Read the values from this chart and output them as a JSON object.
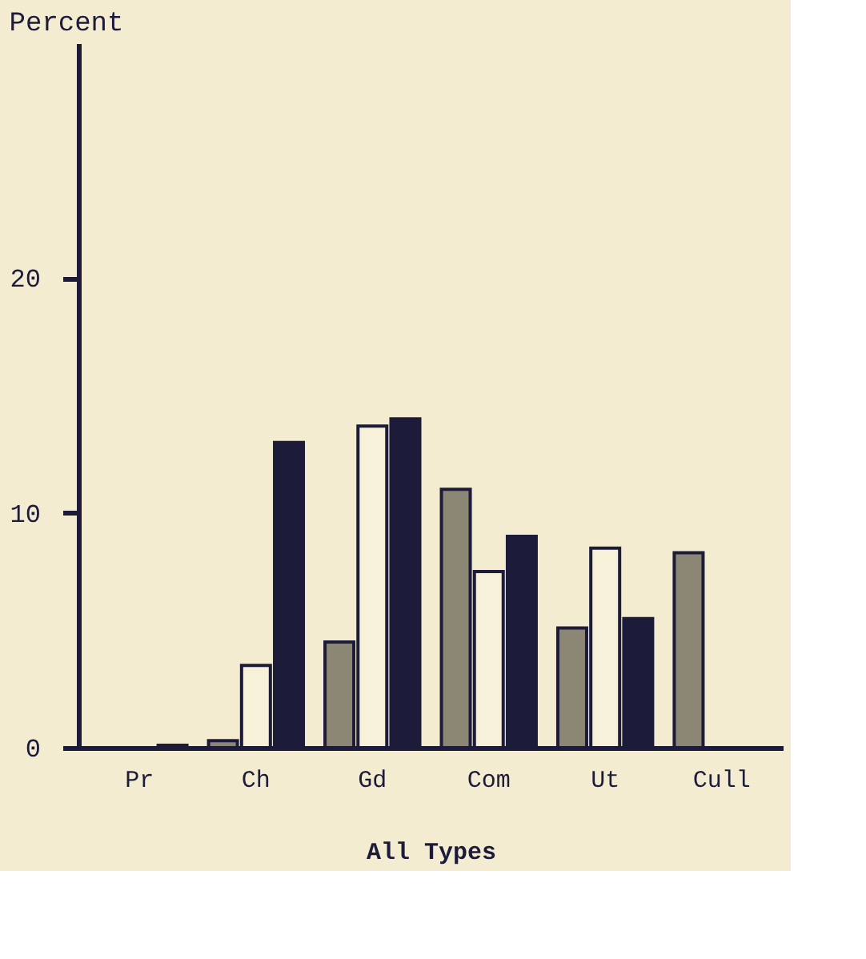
{
  "chart_data": {
    "type": "bar",
    "title": "Percent",
    "xlabel": "All Types",
    "categories": [
      "Pr",
      "Ch",
      "Gd",
      "Com",
      "Ut",
      "Cull"
    ],
    "series": [
      {
        "color": "#8c8675",
        "values": [
          null,
          0.3,
          4.5,
          11.0,
          5.1,
          8.3
        ]
      },
      {
        "color": "#f7f1da",
        "values": [
          null,
          3.5,
          13.7,
          7.5,
          8.5,
          null
        ]
      },
      {
        "color": "#1c1c3a",
        "values": [
          0.1,
          13.0,
          14.0,
          9.0,
          5.5,
          null
        ]
      }
    ],
    "ylim": [
      0,
      30
    ],
    "yticks": [
      0,
      10,
      20
    ],
    "grid": false,
    "legend": false
  }
}
